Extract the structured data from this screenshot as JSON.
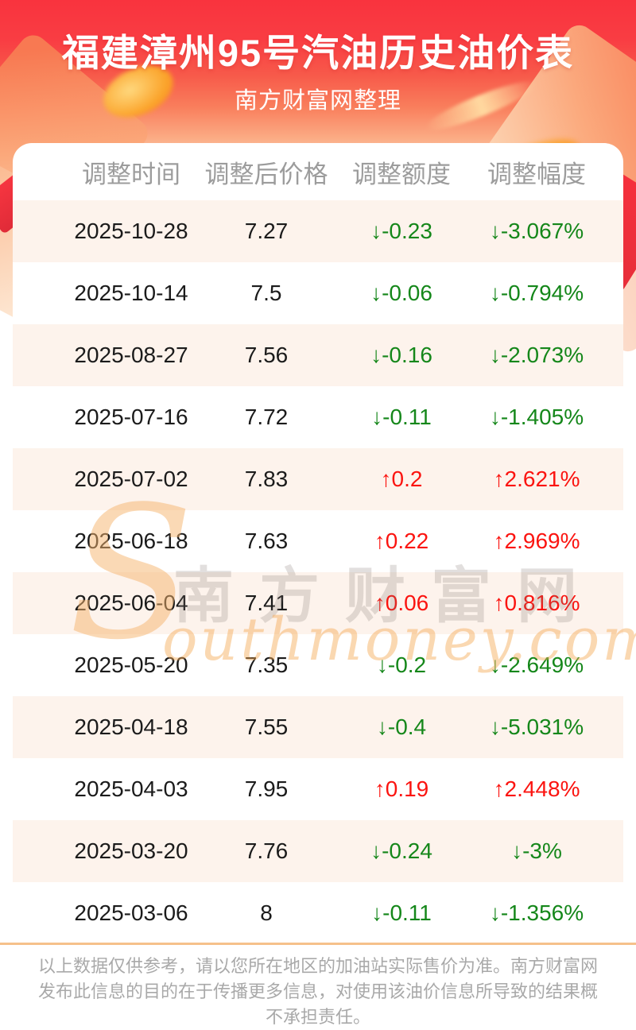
{
  "header": {
    "title": "福建漳州95号汽油历史油价表",
    "subtitle": "南方财富网整理"
  },
  "table": {
    "columns": [
      "调整时间",
      "调整后价格",
      "调整额度",
      "调整幅度"
    ],
    "rows": [
      {
        "date": "2025-10-28",
        "price": "7.27",
        "change": "↓-0.23",
        "percent": "↓-3.067%",
        "direction": "down"
      },
      {
        "date": "2025-10-14",
        "price": "7.5",
        "change": "↓-0.06",
        "percent": "↓-0.794%",
        "direction": "down"
      },
      {
        "date": "2025-08-27",
        "price": "7.56",
        "change": "↓-0.16",
        "percent": "↓-2.073%",
        "direction": "down"
      },
      {
        "date": "2025-07-16",
        "price": "7.72",
        "change": "↓-0.11",
        "percent": "↓-1.405%",
        "direction": "down"
      },
      {
        "date": "2025-07-02",
        "price": "7.83",
        "change": "↑0.2",
        "percent": "↑2.621%",
        "direction": "up"
      },
      {
        "date": "2025-06-18",
        "price": "7.63",
        "change": "↑0.22",
        "percent": "↑2.969%",
        "direction": "up"
      },
      {
        "date": "2025-06-04",
        "price": "7.41",
        "change": "↑0.06",
        "percent": "↑0.816%",
        "direction": "up"
      },
      {
        "date": "2025-05-20",
        "price": "7.35",
        "change": "↓-0.2",
        "percent": "↓-2.649%",
        "direction": "down"
      },
      {
        "date": "2025-04-18",
        "price": "7.55",
        "change": "↓-0.4",
        "percent": "↓-5.031%",
        "direction": "down"
      },
      {
        "date": "2025-04-03",
        "price": "7.95",
        "change": "↑0.19",
        "percent": "↑2.448%",
        "direction": "up"
      },
      {
        "date": "2025-03-20",
        "price": "7.76",
        "change": "↓-0.24",
        "percent": "↓-3%",
        "direction": "down"
      },
      {
        "date": "2025-03-06",
        "price": "8",
        "change": "↓-0.11",
        "percent": "↓-1.356%",
        "direction": "down"
      }
    ]
  },
  "watermark": {
    "initial": "S",
    "cn": "南方财富网",
    "en": "outhmoney.com"
  },
  "footer": {
    "disclaimer": "以上数据仅供参考，请以您所在地区的加油站实际售价为准。南方财富网发布此信息的目的在于传播更多信息，对使用该油价信息所导致的结果概不承担责任。"
  },
  "colors": {
    "up": "#fb1410",
    "down": "#15871a",
    "banner_top": "#f9333e",
    "stripe": "#fdf3ec",
    "header_text": "#9c9c9c",
    "footer_line": "#f6c18b",
    "footer_text": "#a9a9a9"
  }
}
